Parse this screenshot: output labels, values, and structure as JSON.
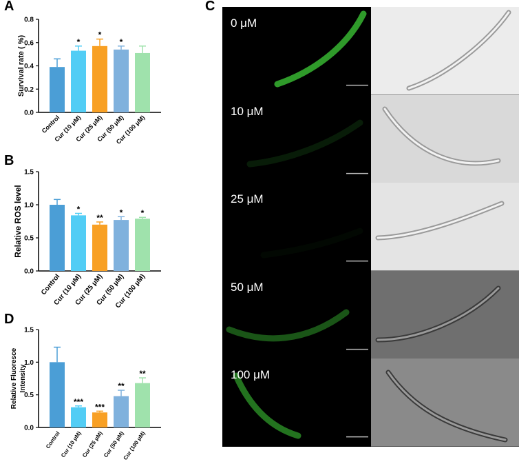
{
  "panels": {
    "a": "A",
    "b": "B",
    "c": "C",
    "d": "D"
  },
  "colors": {
    "control": "#4b9ed6",
    "cur10": "#52cdf5",
    "cur25": "#f8a024",
    "cur50": "#7fb1dd",
    "cur100": "#9fe2ac",
    "fluor": "#2f9a2a"
  },
  "chart_data": [
    {
      "type": "bar",
      "panel": "A",
      "ylabel": "Survival rate ( %)",
      "categories": [
        "Control",
        "Cur (10 μM)",
        "Cur (25 μM)",
        "Cur (50 μM)",
        "Cur (100 μM)"
      ],
      "values": [
        0.39,
        0.53,
        0.57,
        0.54,
        0.51
      ],
      "errors": [
        0.07,
        0.04,
        0.06,
        0.03,
        0.06
      ],
      "significance": [
        "",
        "*",
        "*",
        "*",
        ""
      ],
      "ylim": [
        0,
        0.8
      ],
      "yticks": [
        "0.0",
        "0.2",
        "0.4",
        "0.6",
        "0.8"
      ]
    },
    {
      "type": "bar",
      "panel": "B",
      "ylabel": "Relative ROS level",
      "categories": [
        "Control",
        "Cur (10 μM)",
        "Cur (25 μM)",
        "Cur (50 μM)",
        "Cur (100 μM)"
      ],
      "values": [
        1.0,
        0.84,
        0.7,
        0.77,
        0.79
      ],
      "errors": [
        0.08,
        0.03,
        0.04,
        0.05,
        0.02
      ],
      "significance": [
        "",
        "*",
        "**",
        "*",
        "*"
      ],
      "ylim": [
        0,
        1.5
      ],
      "yticks": [
        "0.0",
        "0.5",
        "1.0",
        "1.5"
      ]
    },
    {
      "type": "bar",
      "panel": "D",
      "ylabel": "Relative Fluoresce Intensity",
      "ylabel_lines": [
        "Relative Fluoresce",
        "Intensity"
      ],
      "categories": [
        "Control",
        "Cur (10 μM)",
        "Cur (25 μM)",
        "Cur (50 μM)",
        "Cur (100 μM)"
      ],
      "values": [
        1.0,
        0.31,
        0.23,
        0.48,
        0.68
      ],
      "errors": [
        0.23,
        0.02,
        0.02,
        0.09,
        0.08
      ],
      "significance": [
        "",
        "***",
        "***",
        "**",
        "**"
      ],
      "ylim": [
        0,
        1.5
      ],
      "yticks": [
        "0.0",
        "0.5",
        "1.0",
        "1.5"
      ]
    }
  ],
  "micrographs": {
    "rows": [
      {
        "label": "0 μM",
        "fluor_level": 1.0
      },
      {
        "label": "10 μM",
        "fluor_level": 0.18
      },
      {
        "label": "25 μM",
        "fluor_level": 0.05
      },
      {
        "label": "50 μM",
        "fluor_level": 0.55
      },
      {
        "label": "100 μM",
        "fluor_level": 0.75
      }
    ]
  }
}
